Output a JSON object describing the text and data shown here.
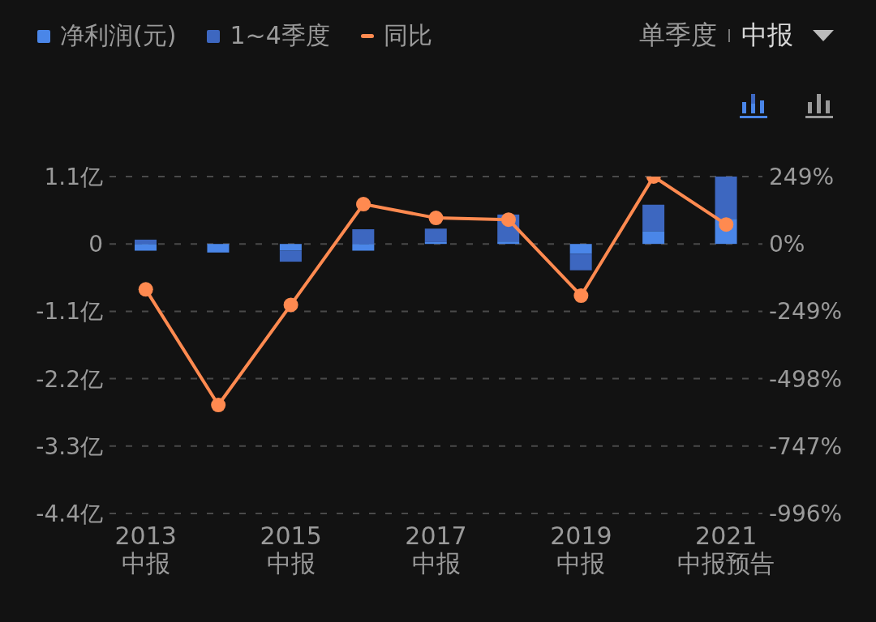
{
  "chart_data": {
    "type": "bar",
    "stacked": true,
    "categories": [
      "2013\n中报",
      null,
      "2015\n中报",
      null,
      "2017\n中报",
      null,
      "2019\n中报",
      null,
      "2021\n中报预告"
    ],
    "series": [
      {
        "name": "净利润(元)",
        "color": "#4a86e8",
        "values": [
          -0.11,
          -0.14,
          -0.11,
          -0.11,
          0.03,
          0.04,
          -0.16,
          0.21,
          0.41
        ]
      },
      {
        "name": "1~4季度",
        "color": "#3d67c0",
        "values": [
          0.07,
          0,
          -0.18,
          0.24,
          0.22,
          0.44,
          -0.27,
          0.43,
          0.69
        ]
      },
      {
        "name": "同比",
        "type": "line",
        "axis": "y2",
        "color": "#ff8a50",
        "values": [
          -168,
          -595,
          -225,
          147,
          96,
          90,
          -191,
          249,
          72
        ]
      }
    ],
    "ylim": [
      -4.4,
      1.1
    ],
    "yticks": [
      {
        "value": -4.4,
        "label": "-4.4亿"
      },
      {
        "value": -3.3,
        "label": "-3.3亿"
      },
      {
        "value": -2.2,
        "label": "-2.2亿"
      },
      {
        "value": -1.1,
        "label": "-1.1亿"
      },
      0,
      {
        "value": 1.1,
        "label": "1.1亿"
      }
    ],
    "y2lim": [
      -996,
      249
    ],
    "y2ticks": [
      {
        "value": -996,
        "label": "-996%"
      },
      {
        "value": -747,
        "label": "-747%"
      },
      {
        "value": -498,
        "label": "-498%"
      },
      {
        "value": -249,
        "label": "-249%"
      },
      {
        "value": 0,
        "label": "0%"
      },
      {
        "value": 249,
        "label": "249%"
      }
    ],
    "grid": "y",
    "legend": "top left",
    "marker": "circle",
    "line_style": "solid",
    "annotations": [
      "单季度",
      "中报"
    ]
  }
}
